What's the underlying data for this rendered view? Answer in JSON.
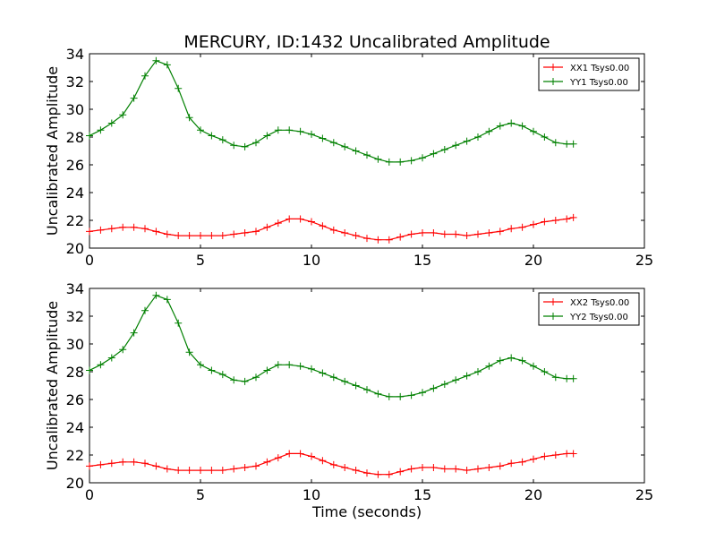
{
  "figure": {
    "title": "MERCURY, ID:1432 Uncalibrated Amplitude",
    "xlabel": "Time (seconds)"
  },
  "chart_data": [
    {
      "type": "line",
      "title": "MERCURY, ID:1432 Uncalibrated Amplitude",
      "xlabel": "",
      "ylabel": "Uncalibrated Amplitude",
      "xlim": [
        0,
        25
      ],
      "ylim": [
        20,
        34
      ],
      "xticks": [
        "0",
        "5",
        "10",
        "15",
        "20",
        "25"
      ],
      "yticks": [
        "20",
        "22",
        "24",
        "26",
        "28",
        "30",
        "32",
        "34"
      ],
      "grid": false,
      "legend_position": "top-right",
      "series": [
        {
          "name": "XX1 Tsys0.00",
          "color": "#ff0000",
          "marker": "plus",
          "x": [
            0,
            0.5,
            1,
            1.5,
            2,
            2.5,
            3,
            3.5,
            4,
            4.5,
            5,
            5.5,
            6,
            6.5,
            7,
            7.5,
            8,
            8.5,
            9,
            9.5,
            10,
            10.5,
            11,
            11.5,
            12,
            12.5,
            13,
            13.5,
            14,
            14.5,
            15,
            15.5,
            16,
            16.5,
            17,
            17.5,
            18,
            18.5,
            19,
            19.5,
            20,
            20.5,
            21,
            21.5,
            21.8
          ],
          "values": [
            21.2,
            21.3,
            21.4,
            21.5,
            21.5,
            21.4,
            21.2,
            21.0,
            20.9,
            20.9,
            20.9,
            20.9,
            20.9,
            21.0,
            21.1,
            21.2,
            21.5,
            21.8,
            22.1,
            22.1,
            21.9,
            21.6,
            21.3,
            21.1,
            20.9,
            20.7,
            20.6,
            20.6,
            20.8,
            21.0,
            21.1,
            21.1,
            21.0,
            21.0,
            20.9,
            21.0,
            21.1,
            21.2,
            21.4,
            21.5,
            21.7,
            21.9,
            22.0,
            22.1,
            22.2
          ]
        },
        {
          "name": "YY1 Tsys0.00",
          "color": "#008000",
          "marker": "plus",
          "x": [
            0,
            0.5,
            1,
            1.5,
            2,
            2.5,
            3,
            3.5,
            4,
            4.5,
            5,
            5.5,
            6,
            6.5,
            7,
            7.5,
            8,
            8.5,
            9,
            9.5,
            10,
            10.5,
            11,
            11.5,
            12,
            12.5,
            13,
            13.5,
            14,
            14.5,
            15,
            15.5,
            16,
            16.5,
            17,
            17.5,
            18,
            18.5,
            19,
            19.5,
            20,
            20.5,
            21,
            21.5,
            21.8
          ],
          "values": [
            28.1,
            28.5,
            29.0,
            29.6,
            30.8,
            32.4,
            33.5,
            33.2,
            31.5,
            29.4,
            28.5,
            28.1,
            27.8,
            27.4,
            27.3,
            27.6,
            28.1,
            28.5,
            28.5,
            28.4,
            28.2,
            27.9,
            27.6,
            27.3,
            27.0,
            26.7,
            26.4,
            26.2,
            26.2,
            26.3,
            26.5,
            26.8,
            27.1,
            27.4,
            27.7,
            28.0,
            28.4,
            28.8,
            29.0,
            28.8,
            28.4,
            28.0,
            27.6,
            27.5,
            27.5
          ]
        }
      ]
    },
    {
      "type": "line",
      "title": "",
      "xlabel": "Time (seconds)",
      "ylabel": "Uncalibrated Amplitude",
      "xlim": [
        0,
        25
      ],
      "ylim": [
        20,
        34
      ],
      "xticks": [
        "0",
        "5",
        "10",
        "15",
        "20",
        "25"
      ],
      "yticks": [
        "20",
        "22",
        "24",
        "26",
        "28",
        "30",
        "32",
        "34"
      ],
      "grid": false,
      "legend_position": "top-right",
      "series": [
        {
          "name": "XX2 Tsys0.00",
          "color": "#ff0000",
          "marker": "plus",
          "x": [
            0,
            0.5,
            1,
            1.5,
            2,
            2.5,
            3,
            3.5,
            4,
            4.5,
            5,
            5.5,
            6,
            6.5,
            7,
            7.5,
            8,
            8.5,
            9,
            9.5,
            10,
            10.5,
            11,
            11.5,
            12,
            12.5,
            13,
            13.5,
            14,
            14.5,
            15,
            15.5,
            16,
            16.5,
            17,
            17.5,
            18,
            18.5,
            19,
            19.5,
            20,
            20.5,
            21,
            21.5,
            21.8
          ],
          "values": [
            21.2,
            21.3,
            21.4,
            21.5,
            21.5,
            21.4,
            21.2,
            21.0,
            20.9,
            20.9,
            20.9,
            20.9,
            20.9,
            21.0,
            21.1,
            21.2,
            21.5,
            21.8,
            22.1,
            22.1,
            21.9,
            21.6,
            21.3,
            21.1,
            20.9,
            20.7,
            20.6,
            20.6,
            20.8,
            21.0,
            21.1,
            21.1,
            21.0,
            21.0,
            20.9,
            21.0,
            21.1,
            21.2,
            21.4,
            21.5,
            21.7,
            21.9,
            22.0,
            22.1,
            22.1
          ]
        },
        {
          "name": "YY2 Tsys0.00",
          "color": "#008000",
          "marker": "plus",
          "x": [
            0,
            0.5,
            1,
            1.5,
            2,
            2.5,
            3,
            3.5,
            4,
            4.5,
            5,
            5.5,
            6,
            6.5,
            7,
            7.5,
            8,
            8.5,
            9,
            9.5,
            10,
            10.5,
            11,
            11.5,
            12,
            12.5,
            13,
            13.5,
            14,
            14.5,
            15,
            15.5,
            16,
            16.5,
            17,
            17.5,
            18,
            18.5,
            19,
            19.5,
            20,
            20.5,
            21,
            21.5,
            21.8
          ],
          "values": [
            28.1,
            28.5,
            29.0,
            29.6,
            30.8,
            32.4,
            33.5,
            33.2,
            31.5,
            29.4,
            28.5,
            28.1,
            27.8,
            27.4,
            27.3,
            27.6,
            28.1,
            28.5,
            28.5,
            28.4,
            28.2,
            27.9,
            27.6,
            27.3,
            27.0,
            26.7,
            26.4,
            26.2,
            26.2,
            26.3,
            26.5,
            26.8,
            27.1,
            27.4,
            27.7,
            28.0,
            28.4,
            28.8,
            29.0,
            28.8,
            28.4,
            28.0,
            27.6,
            27.5,
            27.5
          ]
        }
      ]
    }
  ]
}
